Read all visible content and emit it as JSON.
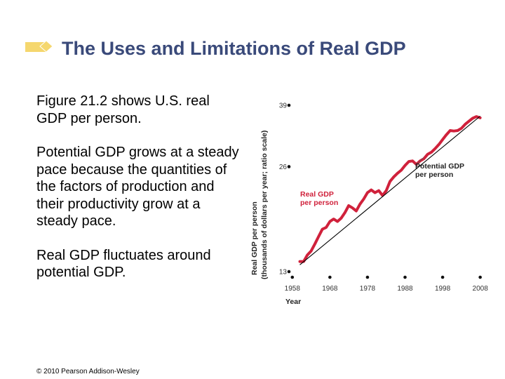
{
  "slide": {
    "title": "The Uses and Limitations of Real GDP",
    "bullets": [
      "Figure 21.2 shows U.S. real GDP per person.",
      "Potential GDP grows at a steady pace because the quantities of the factors of production and their productivity grow at a steady pace.",
      "Real GDP fluctuates around potential GDP."
    ],
    "copyright": "© 2010 Pearson Addison-Wesley",
    "accent_color": "#f5d76e"
  },
  "chart_data": {
    "type": "line",
    "title": "",
    "xlabel": "Year",
    "ylabel_line1": "Real GDP per person",
    "ylabel_line2": "(thousands of dollars per year; ratio scale)",
    "x_ticks": [
      1958,
      1968,
      1978,
      1988,
      1998,
      2008
    ],
    "y_ticks": [
      13,
      26,
      39
    ],
    "y_scale": "log",
    "xlim": [
      1953,
      2009
    ],
    "ylim": [
      13,
      39
    ],
    "series": [
      {
        "name": "Real GDP per person",
        "label_lines": [
          "Real GDP",
          "per person"
        ],
        "color": "#d0213b",
        "x": [
          1960,
          1961,
          1962,
          1963,
          1964,
          1965,
          1966,
          1967,
          1968,
          1969,
          1970,
          1971,
          1972,
          1973,
          1974,
          1975,
          1976,
          1977,
          1978,
          1979,
          1980,
          1981,
          1982,
          1983,
          1984,
          1985,
          1986,
          1987,
          1988,
          1989,
          1990,
          1991,
          1992,
          1993,
          1994,
          1995,
          1996,
          1997,
          1998,
          1999,
          2000,
          2001,
          2002,
          2003,
          2004,
          2005,
          2006,
          2007,
          2008
        ],
        "y": [
          13.9,
          13.9,
          14.5,
          14.9,
          15.6,
          16.4,
          17.2,
          17.4,
          18.1,
          18.4,
          18.1,
          18.5,
          19.2,
          20.1,
          19.8,
          19.4,
          20.3,
          21.0,
          21.9,
          22.3,
          21.9,
          22.2,
          21.5,
          22.2,
          23.6,
          24.3,
          24.9,
          25.4,
          26.2,
          26.9,
          27.0,
          26.4,
          27.0,
          27.4,
          28.2,
          28.6,
          29.3,
          30.1,
          31.1,
          32.1,
          33.0,
          32.9,
          33.0,
          33.5,
          34.4,
          35.1,
          35.8,
          36.2,
          35.9
        ]
      },
      {
        "name": "Potential GDP per person",
        "label_lines": [
          "Potential GDP",
          "per person"
        ],
        "color": "#000000",
        "x": [
          1960,
          2008
        ],
        "y": [
          13.6,
          36.3
        ]
      }
    ]
  }
}
